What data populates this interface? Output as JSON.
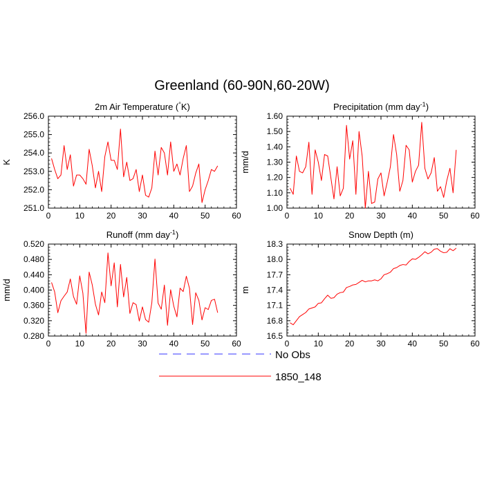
{
  "figure": {
    "title": "Greenland (60-90N,60-20W)"
  },
  "legend": {
    "items": [
      {
        "label": "No Obs",
        "color": "#3333ff",
        "style": "dashed"
      },
      {
        "label": "1850_148",
        "color": "#ff0000",
        "style": "solid"
      }
    ]
  },
  "chart_data": [
    {
      "type": "line",
      "title": "2m Air Temperature (°K)",
      "ylabel": "K",
      "xlim": [
        0,
        60
      ],
      "ylim": [
        251.0,
        256.0
      ],
      "xticks": [
        0,
        10,
        20,
        30,
        40,
        50,
        60
      ],
      "yticks": [
        "251.0",
        "252.0",
        "253.0",
        "254.0",
        "255.0",
        "256.0"
      ],
      "series": [
        {
          "color": "#ff0000",
          "x": [
            1,
            2,
            3,
            4,
            5,
            6,
            7,
            8,
            9,
            10,
            11,
            12,
            13,
            14,
            15,
            16,
            17,
            18,
            19,
            20,
            21,
            22,
            23,
            24,
            25,
            26,
            27,
            28,
            29,
            30,
            31,
            32,
            33,
            34,
            35,
            36,
            37,
            38,
            39,
            40,
            41,
            42,
            43,
            44,
            45,
            46,
            47,
            48,
            49,
            50,
            51,
            52,
            53,
            54
          ],
          "y": [
            253.7,
            253.1,
            252.6,
            252.8,
            254.4,
            253.1,
            253.9,
            252.2,
            252.8,
            252.8,
            252.6,
            252.3,
            254.2,
            253.3,
            252.1,
            253.0,
            251.9,
            253.8,
            254.6,
            253.6,
            253.6,
            253.1,
            255.3,
            252.7,
            253.5,
            252.5,
            252.6,
            253.1,
            251.9,
            252.8,
            251.7,
            251.6,
            252.1,
            254.1,
            252.8,
            254.3,
            254.0,
            252.8,
            254.6,
            253.0,
            253.4,
            252.8,
            253.7,
            254.4,
            251.9,
            252.2,
            252.9,
            253.4,
            251.3,
            252.0,
            252.5,
            253.1,
            253.0,
            253.3
          ]
        }
      ]
    },
    {
      "type": "line",
      "title": "Precipitation (mm day-1)",
      "ylabel": "mm/d",
      "xlim": [
        0,
        60
      ],
      "ylim": [
        1.0,
        1.6
      ],
      "xticks": [
        0,
        10,
        20,
        30,
        40,
        50,
        60
      ],
      "yticks": [
        "1.00",
        "1.10",
        "1.20",
        "1.30",
        "1.40",
        "1.50",
        "1.60"
      ],
      "series": [
        {
          "color": "#ff0000",
          "x": [
            1,
            2,
            3,
            4,
            5,
            6,
            7,
            8,
            9,
            10,
            11,
            12,
            13,
            14,
            15,
            16,
            17,
            18,
            19,
            20,
            21,
            22,
            23,
            24,
            25,
            26,
            27,
            28,
            29,
            30,
            31,
            32,
            33,
            34,
            35,
            36,
            37,
            38,
            39,
            40,
            41,
            42,
            43,
            44,
            45,
            46,
            47,
            48,
            49,
            50,
            51,
            52,
            53,
            54
          ],
          "y": [
            1.13,
            1.09,
            1.34,
            1.24,
            1.23,
            1.27,
            1.43,
            1.09,
            1.38,
            1.3,
            1.18,
            1.35,
            1.34,
            1.2,
            1.06,
            1.27,
            1.08,
            1.13,
            1.54,
            1.32,
            1.44,
            1.09,
            1.5,
            1.34,
            1.0,
            1.24,
            1.03,
            1.04,
            1.19,
            1.23,
            1.08,
            1.17,
            1.27,
            1.48,
            1.35,
            1.11,
            1.18,
            1.41,
            1.38,
            1.17,
            1.24,
            1.28,
            1.56,
            1.26,
            1.19,
            1.23,
            1.33,
            1.11,
            1.14,
            1.07,
            1.18,
            1.26,
            1.1,
            1.38
          ]
        }
      ]
    },
    {
      "type": "line",
      "title": "Runoff (mm day-1)",
      "ylabel": "mm/d",
      "xlim": [
        0,
        60
      ],
      "ylim": [
        0.28,
        0.52
      ],
      "xticks": [
        0,
        10,
        20,
        30,
        40,
        50,
        60
      ],
      "yticks": [
        "0.280",
        "0.320",
        "0.360",
        "0.400",
        "0.440",
        "0.480",
        "0.520"
      ],
      "series": [
        {
          "color": "#ff0000",
          "x": [
            1,
            2,
            3,
            4,
            5,
            6,
            7,
            8,
            9,
            10,
            11,
            12,
            13,
            14,
            15,
            16,
            17,
            18,
            19,
            20,
            21,
            22,
            23,
            24,
            25,
            26,
            27,
            28,
            29,
            30,
            31,
            32,
            33,
            34,
            35,
            36,
            37,
            38,
            39,
            40,
            41,
            42,
            43,
            44,
            45,
            46,
            47,
            48,
            49,
            50,
            51,
            52,
            53,
            54
          ],
          "y": [
            0.42,
            0.395,
            0.341,
            0.372,
            0.384,
            0.395,
            0.429,
            0.383,
            0.363,
            0.437,
            0.392,
            0.287,
            0.447,
            0.413,
            0.363,
            0.335,
            0.395,
            0.367,
            0.497,
            0.411,
            0.471,
            0.356,
            0.467,
            0.382,
            0.433,
            0.339,
            0.367,
            0.362,
            0.319,
            0.356,
            0.323,
            0.316,
            0.367,
            0.481,
            0.366,
            0.35,
            0.413,
            0.308,
            0.401,
            0.358,
            0.33,
            0.405,
            0.396,
            0.436,
            0.405,
            0.31,
            0.393,
            0.373,
            0.322,
            0.354,
            0.349,
            0.373,
            0.376,
            0.341
          ]
        }
      ]
    },
    {
      "type": "line",
      "title": "Snow Depth (m)",
      "ylabel": "m",
      "xlim": [
        0,
        60
      ],
      "ylim": [
        16.5,
        18.3
      ],
      "xticks": [
        0,
        10,
        20,
        30,
        40,
        50,
        60
      ],
      "yticks": [
        "16.5",
        "16.8",
        "17.1",
        "17.4",
        "17.7",
        "18.0",
        "18.3"
      ],
      "series": [
        {
          "color": "#ff0000",
          "x": [
            1,
            2,
            3,
            4,
            5,
            6,
            7,
            8,
            9,
            10,
            11,
            12,
            13,
            14,
            15,
            16,
            17,
            18,
            19,
            20,
            21,
            22,
            23,
            24,
            25,
            26,
            27,
            28,
            29,
            30,
            31,
            32,
            33,
            34,
            35,
            36,
            37,
            38,
            39,
            40,
            41,
            42,
            43,
            44,
            45,
            46,
            47,
            48,
            49,
            50,
            51,
            52,
            53,
            54
          ],
          "y": [
            16.76,
            16.72,
            16.8,
            16.88,
            16.92,
            16.96,
            17.03,
            17.05,
            17.07,
            17.14,
            17.15,
            17.23,
            17.3,
            17.24,
            17.25,
            17.32,
            17.35,
            17.36,
            17.45,
            17.47,
            17.5,
            17.51,
            17.55,
            17.59,
            17.56,
            17.58,
            17.58,
            17.6,
            17.58,
            17.62,
            17.7,
            17.72,
            17.75,
            17.82,
            17.84,
            17.88,
            17.9,
            17.89,
            17.96,
            18.01,
            18.0,
            18.04,
            18.09,
            18.15,
            18.11,
            18.14,
            18.2,
            18.21,
            18.16,
            18.13,
            18.14,
            18.21,
            18.17,
            18.22
          ]
        }
      ]
    }
  ]
}
